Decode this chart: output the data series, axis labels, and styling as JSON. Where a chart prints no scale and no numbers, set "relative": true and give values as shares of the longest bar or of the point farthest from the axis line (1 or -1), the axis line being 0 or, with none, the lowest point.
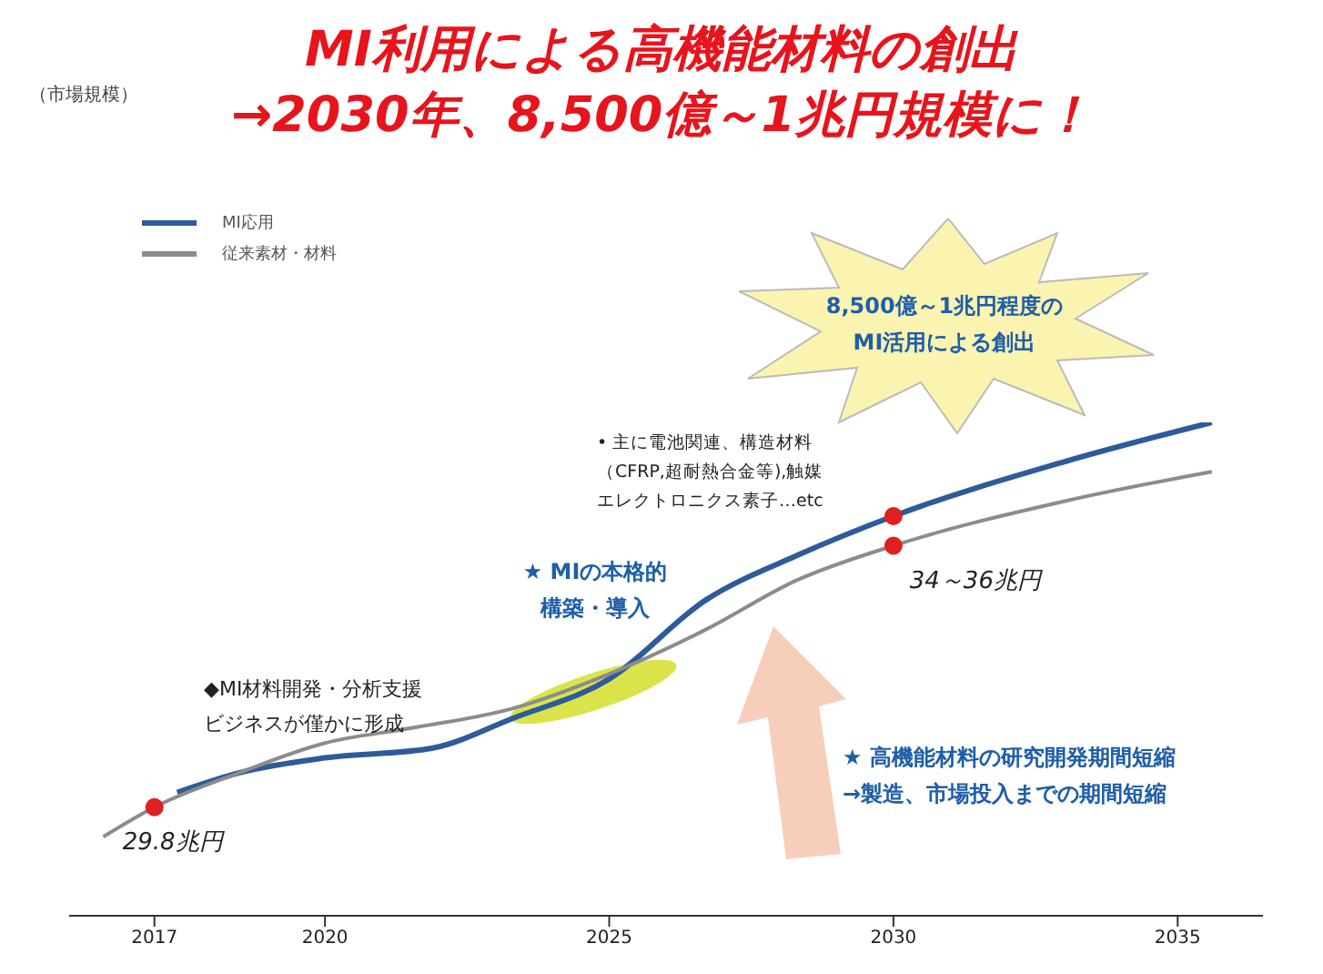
{
  "chart_data": {
    "type": "line",
    "title": "MI利用による高機能材料の創出",
    "subtitle": "→2030年、8,500億～1兆円規模に！",
    "relative": true,
    "legend": "top left",
    "xlim": [
      2015.5,
      2036.5
    ],
    "xticks": [
      2017,
      2020,
      2025,
      2030,
      2035
    ],
    "series": [
      {
        "name": "MI応用",
        "color": "#2e5c9a",
        "x": [
          2017.4,
          2018.5,
          2020,
          2021.9,
          2023.3,
          2025,
          2026.7,
          2028.3,
          2030,
          2033,
          2035.6
        ],
        "values": [
          0.25,
          0.29,
          0.32,
          0.34,
          0.4,
          0.48,
          0.64,
          0.73,
          0.81,
          0.92,
          1
        ]
      },
      {
        "name": "従来素材・材料",
        "color": "#8c8c8c",
        "x": [
          2016.1,
          2017,
          2018.5,
          2020,
          2021.5,
          2023.3,
          2025,
          2026.7,
          2028.3,
          2030,
          2033,
          2035.6
        ],
        "values": [
          0.16,
          0.22,
          0.29,
          0.35,
          0.38,
          0.42,
          0.49,
          0.58,
          0.68,
          0.75,
          0.84,
          0.9
        ]
      },
      {
        "type": "scatter",
        "color": "#e02020",
        "x": [
          2017,
          2030,
          2030
        ],
        "values": [
          0.22,
          0.81,
          0.75
        ]
      }
    ],
    "annotations": [
      "（市場規模）",
      "◆MI材料開発・分析支援ビジネスが僅かに形成",
      "★ MIの本格的構築・導入",
      "8,500億～1兆円程度のMI活用による創出",
      "• 主に電池関連、構造材料（CFRP,超耐熱合金等),触媒エレクトロニクス素子…etc",
      "★ 高機能材料の研究開発期間短縮→製造、市場投入までの期間短縮",
      {
        "text": "29.8兆円",
        "x": 2017,
        "y": 0.22
      },
      {
        "text": "34～36兆円",
        "x": 2030,
        "y": 0.75
      }
    ]
  }
}
